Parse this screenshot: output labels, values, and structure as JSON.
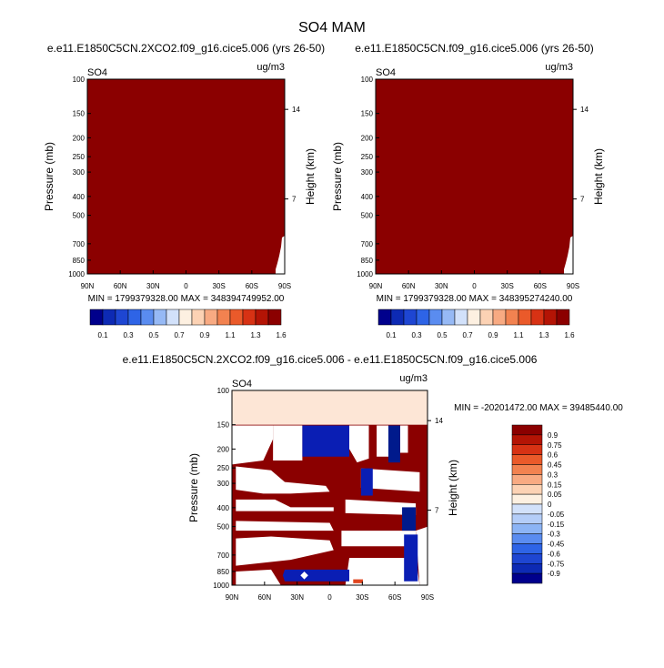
{
  "figure_title": "SO4 MAM",
  "colors": {
    "dark_red": "#8b0000",
    "cream": "#fde6d6",
    "blue": "#0a1eb4",
    "navy": "#001a8c",
    "orange": "#e0451f"
  },
  "chart_data": [
    {
      "type": "heatmap",
      "title": "e.e11.E1850C5CN.2XCO2.f09_g16.cice5.006 (yrs 26-50)",
      "variable_label": "SO4",
      "units_label": "ug/m3",
      "ylabel": "Pressure (mb)",
      "ylabel_right": "Height (km)",
      "yticks": [
        "100",
        "150",
        "200",
        "250",
        "300",
        "400",
        "500",
        "700",
        "850",
        "1000"
      ],
      "yticks_right": [
        "14",
        "7"
      ],
      "xticks": [
        "90N",
        "60N",
        "30N",
        "0",
        "30S",
        "60S",
        "90S"
      ],
      "stats": "MIN = 1799379328.00   MAX = 348394749952.00",
      "colorbar_levels": [
        "0.1",
        "0.3",
        "0.5",
        "0.7",
        "0.9",
        "1.1",
        "1.3",
        "1.6"
      ],
      "colorbar_colors": [
        "#00008c",
        "#0d2ab4",
        "#1e46d2",
        "#2e64e6",
        "#5a8cf0",
        "#96b9f5",
        "#d2e1fa",
        "#fdf0e1",
        "#fcd2b4",
        "#f8aa82",
        "#f28250",
        "#ea5a2a",
        "#d73214",
        "#b41405",
        "#8b0000"
      ],
      "fill_color": "#8b0000"
    },
    {
      "type": "heatmap",
      "title": "e.e11.E1850C5CN.f09_g16.cice5.006 (yrs 26-50)",
      "variable_label": "SO4",
      "units_label": "ug/m3",
      "ylabel": "Pressure (mb)",
      "ylabel_right": "Height (km)",
      "yticks": [
        "100",
        "150",
        "200",
        "250",
        "300",
        "400",
        "500",
        "700",
        "850",
        "1000"
      ],
      "yticks_right": [
        "14",
        "7"
      ],
      "xticks": [
        "90N",
        "60N",
        "30N",
        "0",
        "30S",
        "60S",
        "90S"
      ],
      "stats": "MIN = 1799379328.00   MAX = 348395274240.00",
      "colorbar_levels": [
        "0.1",
        "0.3",
        "0.5",
        "0.7",
        "0.9",
        "1.1",
        "1.3",
        "1.6"
      ],
      "colorbar_colors": [
        "#00008c",
        "#0d2ab4",
        "#1e46d2",
        "#2e64e6",
        "#5a8cf0",
        "#96b9f5",
        "#d2e1fa",
        "#fdf0e1",
        "#fcd2b4",
        "#f8aa82",
        "#f28250",
        "#ea5a2a",
        "#d73214",
        "#b41405",
        "#8b0000"
      ],
      "fill_color": "#8b0000"
    },
    {
      "type": "heatmap",
      "title": "e.e11.E1850C5CN.2XCO2.f09_g16.cice5.006 - e.e11.E1850C5CN.f09_g16.cice5.006",
      "variable_label": "SO4",
      "units_label": "ug/m3",
      "ylabel": "Pressure (mb)",
      "ylabel_right": "Height (km)",
      "yticks": [
        "100",
        "150",
        "200",
        "250",
        "300",
        "400",
        "500",
        "700",
        "850",
        "1000"
      ],
      "yticks_right": [
        "14",
        "7"
      ],
      "xticks": [
        "90N",
        "60N",
        "30N",
        "0",
        "30S",
        "60S",
        "90S"
      ],
      "stats": "MIN = -20201472.00  MAX = 39485440.00",
      "colorbar_levels": [
        "0.9",
        "0.75",
        "0.6",
        "0.45",
        "0.3",
        "0.15",
        "0.05",
        "0",
        "-0.05",
        "-0.15",
        "-0.3",
        "-0.45",
        "-0.6",
        "-0.75",
        "-0.9"
      ],
      "colorbar_colors": [
        "#8b0000",
        "#b41405",
        "#d73214",
        "#ea5a2a",
        "#f28250",
        "#f8aa82",
        "#fcd2b4",
        "#fdf0e1",
        "#d2e1fa",
        "#b4cdf8",
        "#8cb4f5",
        "#5a8cf0",
        "#2e64e6",
        "#1e46d2",
        "#0d2ab4",
        "#00008c"
      ]
    }
  ]
}
